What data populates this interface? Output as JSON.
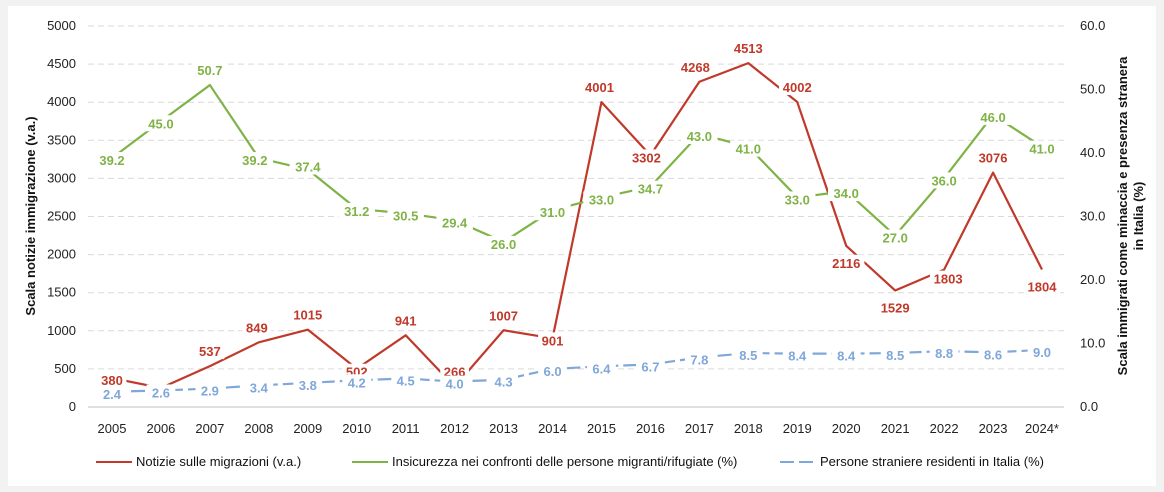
{
  "chart_data": {
    "type": "line",
    "categories": [
      "2005",
      "2006",
      "2007",
      "2008",
      "2009",
      "2010",
      "2011",
      "2012",
      "2013",
      "2014",
      "2015",
      "2016",
      "2017",
      "2018",
      "2019",
      "2020",
      "2021",
      "2022",
      "2023",
      "2024*"
    ],
    "ylabel_left": "Scala notizie immigrazione (v.a.)",
    "ylabel_right": "Scala immigrati come minaccia e presenza stranera in Italia (%)",
    "ylim_left": [
      0,
      5000
    ],
    "yticks_left": [
      0,
      500,
      1000,
      1500,
      2000,
      2500,
      3000,
      3500,
      4000,
      4500,
      5000
    ],
    "ylim_right": [
      0,
      60
    ],
    "yticks_right": [
      "0.0",
      "10.0",
      "20.0",
      "30.0",
      "40.0",
      "50.0",
      "60.0"
    ],
    "grid": true,
    "legend_position": "bottom",
    "series": [
      {
        "name": "Notizie sulle migrazioni (v.a.)",
        "axis": "left",
        "color": "#c0392b",
        "style": "solid",
        "values": [
          380,
          250,
          537,
          849,
          1015,
          502,
          941,
          266,
          1007,
          901,
          4001,
          3302,
          4268,
          4513,
          4002,
          2116,
          1529,
          1803,
          3076,
          1804
        ],
        "labels": [
          "380",
          "",
          "537",
          "849",
          "1015",
          "502",
          "941",
          "266",
          "1007",
          "901",
          "4001",
          "3302",
          "4268",
          "4513",
          "4002",
          "2116",
          "1529",
          "1803",
          "3076",
          "1804"
        ]
      },
      {
        "name": "Insicurezza nei confronti delle persone migranti/rifugiate (%)",
        "axis": "right",
        "color": "#7fb347",
        "style": "solid",
        "values": [
          39.2,
          45.0,
          50.7,
          39.2,
          37.4,
          31.2,
          30.5,
          29.4,
          26.0,
          31.0,
          33.0,
          34.7,
          43.0,
          41.0,
          33.0,
          34.0,
          27.0,
          36.0,
          46.0,
          41.0
        ],
        "labels": [
          "39.2",
          "45.0",
          "50.7",
          "39.2",
          "37.4",
          "31.2",
          "30.5",
          "29.4",
          "26.0",
          "31.0",
          "33.0",
          "34.7",
          "43.0",
          "41.0",
          "33.0",
          "34.0",
          "27.0",
          "36.0",
          "46.0",
          "41.0"
        ]
      },
      {
        "name": "Persone straniere residenti in Italia (%)",
        "axis": "right",
        "color": "#7fa7d9",
        "style": "dashed",
        "values": [
          2.4,
          2.6,
          2.9,
          3.4,
          3.8,
          4.2,
          4.5,
          4.0,
          4.3,
          6.0,
          6.4,
          6.7,
          7.8,
          8.5,
          8.4,
          8.4,
          8.5,
          8.8,
          8.6,
          9.0
        ],
        "labels": [
          "2.4",
          "2.6",
          "2.9",
          "3.4",
          "3.8",
          "4.2",
          "4.5",
          "4.0",
          "4.3",
          "6.0",
          "6.4",
          "6.7",
          "7.8",
          "8.5",
          "8.4",
          "8.4",
          "8.5",
          "8.8",
          "8.6",
          "9.0"
        ]
      }
    ]
  }
}
